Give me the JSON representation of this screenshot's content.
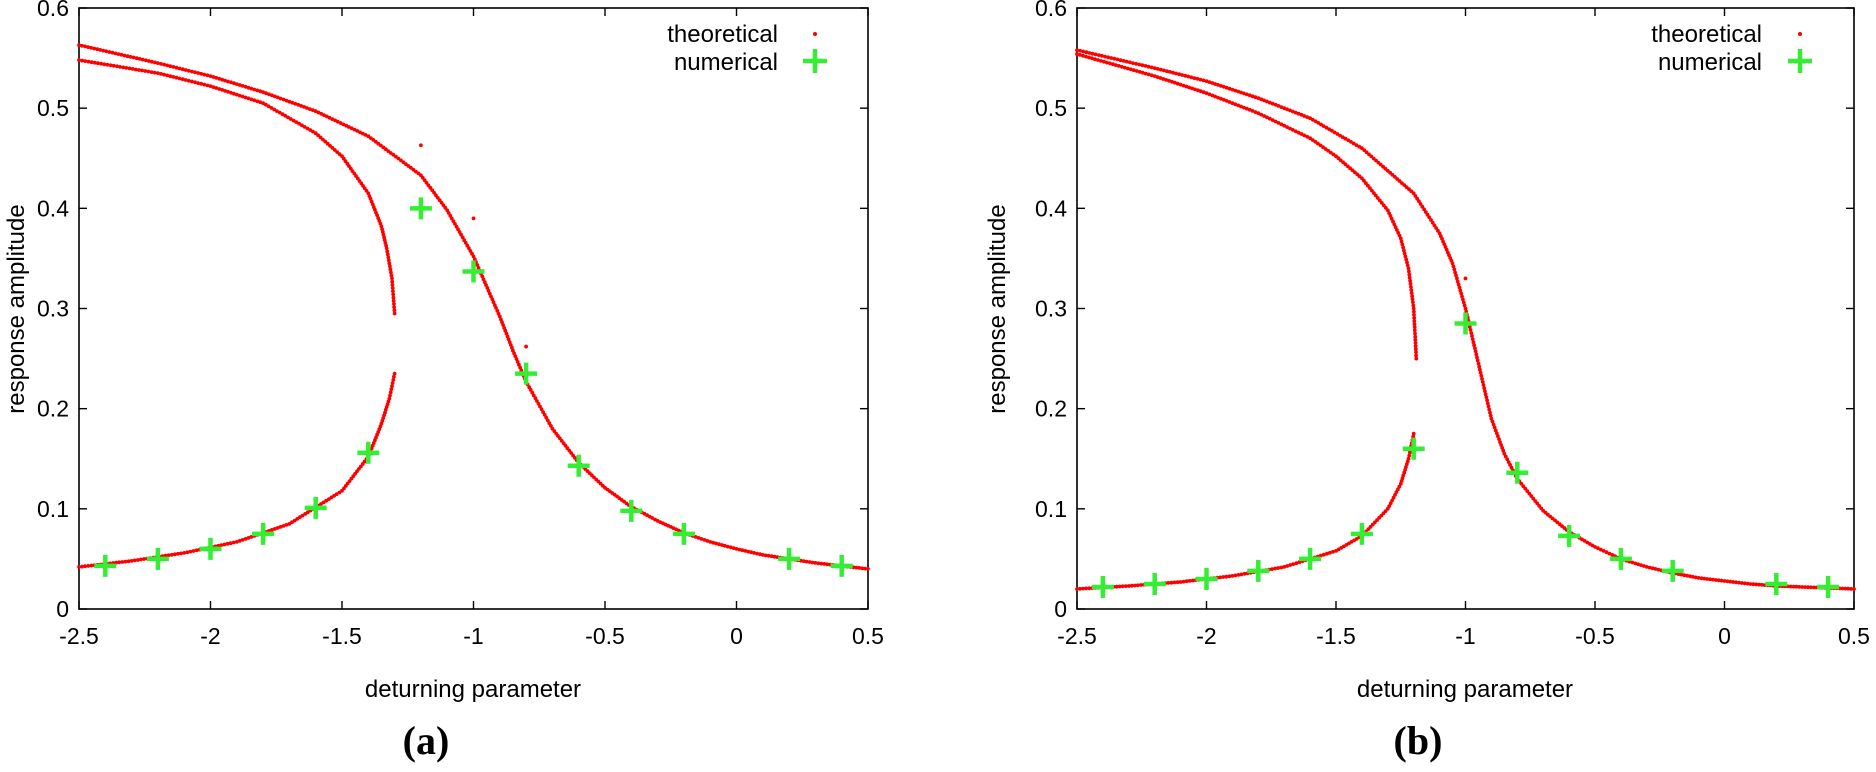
{
  "chart_data": [
    {
      "panel_label": "(a)",
      "type": "scatter",
      "xlabel": "deturning parameter",
      "ylabel": "response amplitude",
      "xlim": [
        -2.5,
        0.5
      ],
      "ylim": [
        0,
        0.6
      ],
      "xticks": [
        "-2.5",
        "-2",
        "-1.5",
        "-1",
        "-0.5",
        "0",
        "0.5"
      ],
      "yticks": [
        "0",
        "0.1",
        "0.2",
        "0.3",
        "0.4",
        "0.5",
        "0.6"
      ],
      "grid": false,
      "legend_position": "top-right",
      "series": [
        {
          "name": "theoretical",
          "marker": "dot",
          "color": "#ff0000",
          "branches": [
            {
              "x": [
                -2.5,
                -2.3,
                -2.1,
                -1.9,
                -1.7,
                -1.5,
                -1.4,
                -1.35,
                -1.32,
                -1.3
              ],
              "y": [
                0.042,
                0.048,
                0.056,
                0.067,
                0.085,
                0.118,
                0.152,
                0.185,
                0.21,
                0.235
              ]
            },
            {
              "x": [
                -1.3,
                -1.31,
                -1.33,
                -1.35,
                -1.4,
                -1.5,
                -1.6,
                -1.8,
                -2.0,
                -2.2,
                -2.5
              ],
              "y": [
                0.295,
                0.33,
                0.36,
                0.382,
                0.415,
                0.452,
                0.475,
                0.505,
                0.522,
                0.535,
                0.548
              ]
            },
            {
              "x": [
                -2.5,
                -2.2,
                -2.0,
                -1.8,
                -1.6,
                -1.4,
                -1.2,
                -1.1,
                -1.0,
                -0.9,
                -0.85,
                -0.8,
                -0.7,
                -0.6,
                -0.5,
                -0.4,
                -0.3,
                -0.2,
                -0.1,
                0.0,
                0.1,
                0.2,
                0.3,
                0.4,
                0.5
              ],
              "y": [
                0.563,
                0.545,
                0.532,
                0.516,
                0.497,
                0.472,
                0.433,
                0.398,
                0.352,
                0.292,
                0.258,
                0.227,
                0.18,
                0.146,
                0.121,
                0.102,
                0.088,
                0.076,
                0.067,
                0.06,
                0.054,
                0.05,
                0.046,
                0.043,
                0.04
              ]
            },
            {
              "x": [
                -1.2,
                -1.0,
                -0.8
              ],
              "y": [
                0.463,
                0.39,
                0.262
              ]
            }
          ]
        },
        {
          "name": "numerical",
          "marker": "plus",
          "color": "#33ee33",
          "x": [
            -2.4,
            -2.2,
            -2.0,
            -1.8,
            -1.6,
            -1.4,
            -1.2,
            -1.0,
            -0.8,
            -0.6,
            -0.4,
            -0.2,
            0.2,
            0.4
          ],
          "y": [
            0.043,
            0.05,
            0.06,
            0.075,
            0.101,
            0.156,
            0.4,
            0.337,
            0.235,
            0.143,
            0.098,
            0.075,
            0.05,
            0.043
          ]
        }
      ]
    },
    {
      "panel_label": "(b)",
      "type": "scatter",
      "xlabel": "deturning parameter",
      "ylabel": "response amplitude",
      "xlim": [
        -2.5,
        0.5
      ],
      "ylim": [
        0,
        0.6
      ],
      "xticks": [
        "-2.5",
        "-2",
        "-1.5",
        "-1",
        "-0.5",
        "0",
        "0.5"
      ],
      "yticks": [
        "0",
        "0.1",
        "0.2",
        "0.3",
        "0.4",
        "0.5",
        "0.6"
      ],
      "grid": false,
      "legend_position": "top-right",
      "series": [
        {
          "name": "theoretical",
          "marker": "dot",
          "color": "#ff0000",
          "branches": [
            {
              "x": [
                -2.5,
                -2.3,
                -2.1,
                -1.9,
                -1.7,
                -1.5,
                -1.4,
                -1.3,
                -1.25,
                -1.22,
                -1.2
              ],
              "y": [
                0.02,
                0.023,
                0.027,
                0.033,
                0.042,
                0.058,
                0.073,
                0.1,
                0.125,
                0.15,
                0.175
              ]
            },
            {
              "x": [
                -1.19,
                -1.2,
                -1.22,
                -1.25,
                -1.3,
                -1.4,
                -1.5,
                -1.6,
                -1.8,
                -2.0,
                -2.2,
                -2.5
              ],
              "y": [
                0.25,
                0.3,
                0.34,
                0.37,
                0.398,
                0.43,
                0.452,
                0.47,
                0.495,
                0.515,
                0.532,
                0.554
              ]
            },
            {
              "x": [
                -2.5,
                -2.2,
                -2.0,
                -1.8,
                -1.6,
                -1.4,
                -1.2,
                -1.1,
                -1.05,
                -1.0,
                -0.95,
                -0.9,
                -0.85,
                -0.8,
                -0.7,
                -0.6,
                -0.5,
                -0.4,
                -0.3,
                -0.2,
                -0.1,
                0.0,
                0.1,
                0.2,
                0.3,
                0.4,
                0.5
              ],
              "y": [
                0.558,
                0.54,
                0.527,
                0.51,
                0.49,
                0.46,
                0.415,
                0.375,
                0.345,
                0.3,
                0.245,
                0.19,
                0.155,
                0.13,
                0.098,
                0.077,
                0.062,
                0.05,
                0.042,
                0.036,
                0.031,
                0.028,
                0.025,
                0.023,
                0.022,
                0.021,
                0.02
              ]
            },
            {
              "x": [
                -1.0
              ],
              "y": [
                0.33
              ]
            }
          ]
        },
        {
          "name": "numerical",
          "marker": "plus",
          "color": "#33ee33",
          "x": [
            -2.4,
            -2.2,
            -2.0,
            -1.8,
            -1.6,
            -1.4,
            -1.2,
            -1.0,
            -0.8,
            -0.6,
            -0.4,
            -0.2,
            0.2,
            0.4
          ],
          "y": [
            0.022,
            0.025,
            0.03,
            0.038,
            0.05,
            0.075,
            0.16,
            0.285,
            0.136,
            0.073,
            0.05,
            0.038,
            0.025,
            0.022
          ]
        }
      ]
    }
  ]
}
